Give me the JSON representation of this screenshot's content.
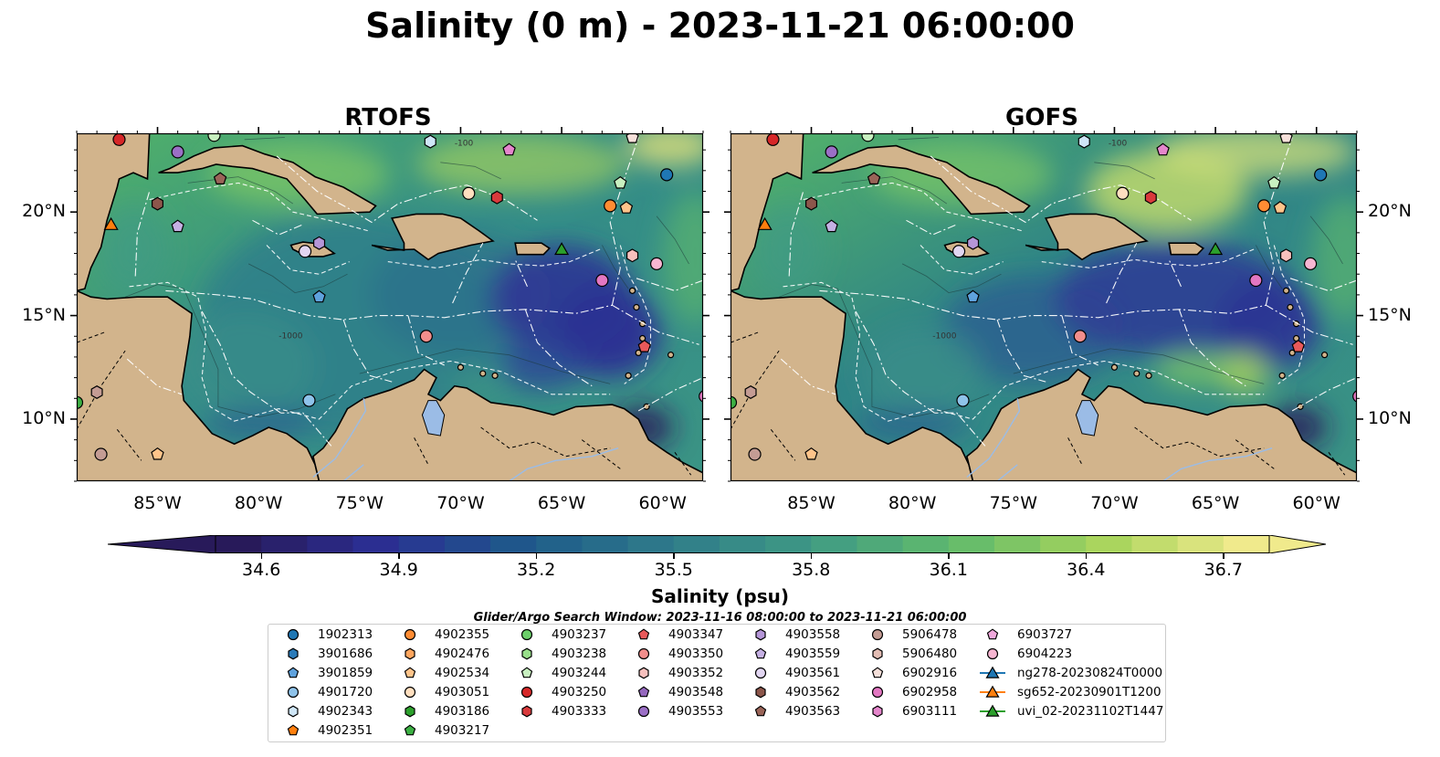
{
  "title": "Salinity (0 m) - 2023-11-21 06:00:00",
  "panels": [
    {
      "name": "RTOFS",
      "variant": "rtofs"
    },
    {
      "name": "GOFS",
      "variant": "gofs"
    }
  ],
  "map": {
    "lon_range": [
      -89,
      -58
    ],
    "lat_range": [
      7,
      23.8
    ],
    "lon_ticks": [
      "85°W",
      "80°W",
      "75°W",
      "70°W",
      "65°W",
      "60°W"
    ],
    "lon_tick_values": [
      -85,
      -80,
      -75,
      -70,
      -65,
      -60
    ],
    "lat_ticks": [
      "20°N",
      "15°N",
      "10°N"
    ],
    "lat_tick_values": [
      20,
      15,
      10
    ],
    "contour_labels": [
      "-100",
      "-1000"
    ],
    "land_color": "#d2b48c",
    "lake_color": "#9bbce6"
  },
  "colorbar": {
    "label": "Salinity (psu)",
    "min": 34.5,
    "max": 36.8,
    "ticks": [
      "34.6",
      "34.9",
      "35.2",
      "35.5",
      "35.8",
      "36.1",
      "36.4",
      "36.7"
    ],
    "tick_values": [
      34.6,
      34.9,
      35.2,
      35.5,
      35.8,
      36.1,
      36.4,
      36.7
    ],
    "colormap": [
      "#281a5a",
      "#2b2f94",
      "#1e5a8a",
      "#2f7b8a",
      "#3f9a84",
      "#62bb6b",
      "#a7d45c",
      "#f0ea8c"
    ]
  },
  "search_window": "Glider/Argo Search Window: 2023-11-16 08:00:00 to 2023-11-21 06:00:00",
  "legend": [
    {
      "id": "1902313",
      "marker": "circle",
      "color": "#1f77b4"
    },
    {
      "id": "3901686",
      "marker": "hexagon",
      "color": "#2b7bb9"
    },
    {
      "id": "3901859",
      "marker": "pentagon",
      "color": "#5fa2dd"
    },
    {
      "id": "4901720",
      "marker": "circle",
      "color": "#8fc3ea"
    },
    {
      "id": "4902343",
      "marker": "hexagon",
      "color": "#cfe6f7"
    },
    {
      "id": "4902351",
      "marker": "pentagon",
      "color": "#ff7f0e"
    },
    {
      "id": "4902355",
      "marker": "circle",
      "color": "#ff8c33"
    },
    {
      "id": "4902476",
      "marker": "hexagon",
      "color": "#ffa65e"
    },
    {
      "id": "4902534",
      "marker": "pentagon",
      "color": "#ffc48a"
    },
    {
      "id": "4903051",
      "marker": "circle",
      "color": "#ffdfbf"
    },
    {
      "id": "4903186",
      "marker": "hexagon",
      "color": "#2ca02c"
    },
    {
      "id": "4903217",
      "marker": "pentagon",
      "color": "#3cb043"
    },
    {
      "id": "4903237",
      "marker": "circle",
      "color": "#6ccf6a"
    },
    {
      "id": "4903238",
      "marker": "hexagon",
      "color": "#98df8a"
    },
    {
      "id": "4903244",
      "marker": "pentagon",
      "color": "#c8f0c0"
    },
    {
      "id": "4903250",
      "marker": "circle",
      "color": "#d62728"
    },
    {
      "id": "4903333",
      "marker": "hexagon",
      "color": "#d93a3c"
    },
    {
      "id": "4903347",
      "marker": "pentagon",
      "color": "#e8595a"
    },
    {
      "id": "4903350",
      "marker": "circle",
      "color": "#f28e8c"
    },
    {
      "id": "4903352",
      "marker": "hexagon",
      "color": "#f7c0bd"
    },
    {
      "id": "4903548",
      "marker": "pentagon",
      "color": "#9467bd"
    },
    {
      "id": "4903553",
      "marker": "circle",
      "color": "#9b6fc6"
    },
    {
      "id": "4903558",
      "marker": "hexagon",
      "color": "#b596d8"
    },
    {
      "id": "4903559",
      "marker": "pentagon",
      "color": "#c5b0e3"
    },
    {
      "id": "4903561",
      "marker": "circle",
      "color": "#e2d6f2"
    },
    {
      "id": "4903562",
      "marker": "hexagon",
      "color": "#8c564b"
    },
    {
      "id": "4903563",
      "marker": "pentagon",
      "color": "#9a6458"
    },
    {
      "id": "5906478",
      "marker": "circle",
      "color": "#c49c94"
    },
    {
      "id": "5906480",
      "marker": "hexagon",
      "color": "#e3bdb4"
    },
    {
      "id": "6902916",
      "marker": "pentagon",
      "color": "#f6e0da"
    },
    {
      "id": "6902958",
      "marker": "circle",
      "color": "#e377c2"
    },
    {
      "id": "6903111",
      "marker": "hexagon",
      "color": "#e586cc"
    },
    {
      "id": "6903727",
      "marker": "pentagon",
      "color": "#f0a8dc"
    },
    {
      "id": "6904223",
      "marker": "circle",
      "color": "#f7b6d2"
    },
    {
      "id": "ng278-20230824T0000",
      "marker": "triangle-line",
      "color": "#1f77b4"
    },
    {
      "id": "sg652-20230901T1200",
      "marker": "triangle-line",
      "color": "#ff7f0e"
    },
    {
      "id": "uvi_02-20231102T1447",
      "marker": "triangle-line",
      "color": "#2ca02c"
    }
  ],
  "observations": [
    {
      "lon": -86.9,
      "lat": 23.5,
      "color": "#d62728",
      "marker": "circle"
    },
    {
      "lon": -84.0,
      "lat": 22.9,
      "color": "#9b6fc6",
      "marker": "circle"
    },
    {
      "lon": -82.2,
      "lat": 23.7,
      "color": "#c8f0c0",
      "marker": "circle"
    },
    {
      "lon": -71.5,
      "lat": 23.4,
      "color": "#cfe6f7",
      "marker": "hexagon"
    },
    {
      "lon": -67.6,
      "lat": 23.0,
      "color": "#e586cc",
      "marker": "pentagon"
    },
    {
      "lon": -61.5,
      "lat": 23.6,
      "color": "#f6e0da",
      "marker": "pentagon"
    },
    {
      "lon": -59.8,
      "lat": 21.8,
      "color": "#1f77b4",
      "marker": "circle"
    },
    {
      "lon": -85.0,
      "lat": 20.4,
      "color": "#8c564b",
      "marker": "hexagon"
    },
    {
      "lon": -81.9,
      "lat": 21.6,
      "color": "#9a6458",
      "marker": "pentagon"
    },
    {
      "lon": -87.3,
      "lat": 19.4,
      "color": "#ff7f0e",
      "marker": "triangle"
    },
    {
      "lon": -84.0,
      "lat": 19.3,
      "color": "#c5b0e3",
      "marker": "pentagon"
    },
    {
      "lon": -69.6,
      "lat": 20.9,
      "color": "#ffdfbf",
      "marker": "circle"
    },
    {
      "lon": -68.2,
      "lat": 20.7,
      "color": "#d93a3c",
      "marker": "hexagon"
    },
    {
      "lon": -62.6,
      "lat": 20.3,
      "color": "#ff8c33",
      "marker": "circle"
    },
    {
      "lon": -62.1,
      "lat": 21.4,
      "color": "#c8f0c0",
      "marker": "pentagon"
    },
    {
      "lon": -61.8,
      "lat": 20.2,
      "color": "#ffc48a",
      "marker": "pentagon"
    },
    {
      "lon": -77.7,
      "lat": 18.1,
      "color": "#e2d6f2",
      "marker": "circle"
    },
    {
      "lon": -77.0,
      "lat": 18.5,
      "color": "#b596d8",
      "marker": "hexagon"
    },
    {
      "lon": -65.0,
      "lat": 18.2,
      "color": "#2ca02c",
      "marker": "triangle"
    },
    {
      "lon": -61.5,
      "lat": 17.9,
      "color": "#f7c0bd",
      "marker": "hexagon"
    },
    {
      "lon": -60.3,
      "lat": 17.5,
      "color": "#f7b6d2",
      "marker": "circle"
    },
    {
      "lon": -63.0,
      "lat": 16.7,
      "color": "#e377c2",
      "marker": "circle"
    },
    {
      "lon": -77.0,
      "lat": 15.9,
      "color": "#5fa2dd",
      "marker": "pentagon"
    },
    {
      "lon": -71.7,
      "lat": 14.0,
      "color": "#f28e8c",
      "marker": "circle"
    },
    {
      "lon": -60.9,
      "lat": 13.5,
      "color": "#e8595a",
      "marker": "pentagon"
    },
    {
      "lon": -77.5,
      "lat": 10.9,
      "color": "#8fc3ea",
      "marker": "circle"
    },
    {
      "lon": -88.0,
      "lat": 11.3,
      "color": "#c49c94",
      "marker": "hexagon"
    },
    {
      "lon": -89.0,
      "lat": 10.8,
      "color": "#3cb043",
      "marker": "circle"
    },
    {
      "lon": -57.9,
      "lat": 11.1,
      "color": "#e377c2",
      "marker": "circle"
    },
    {
      "lon": -87.8,
      "lat": 8.3,
      "color": "#c49c94",
      "marker": "circle"
    },
    {
      "lon": -85.0,
      "lat": 8.3,
      "color": "#ffc48a",
      "marker": "pentagon"
    }
  ]
}
